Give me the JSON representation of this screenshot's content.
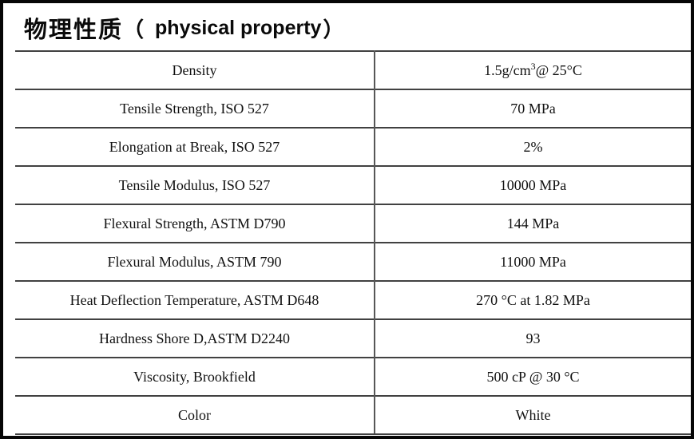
{
  "title": {
    "zh": "物理性质",
    "paren_open": "（",
    "en": "physical property",
    "paren_close": "）"
  },
  "table": {
    "rows": [
      {
        "property": "Density",
        "value_pre": "1.5g/cm",
        "value_sup": "3",
        "value_post": "@ 25°C"
      },
      {
        "property": "Tensile Strength, ISO 527",
        "value_pre": "70 MPa",
        "value_sup": "",
        "value_post": ""
      },
      {
        "property": "Elongation at Break, ISO 527",
        "value_pre": "2%",
        "value_sup": "",
        "value_post": ""
      },
      {
        "property": "Tensile Modulus, ISO 527",
        "value_pre": "10000 MPa",
        "value_sup": "",
        "value_post": ""
      },
      {
        "property": "Flexural Strength, ASTM D790",
        "value_pre": "144 MPa",
        "value_sup": "",
        "value_post": ""
      },
      {
        "property": "Flexural Modulus, ASTM 790",
        "value_pre": "11000 MPa",
        "value_sup": "",
        "value_post": ""
      },
      {
        "property": "Heat Deflection Temperature, ASTM D648",
        "value_pre": "270 °C at 1.82 MPa",
        "value_sup": "",
        "value_post": ""
      },
      {
        "property": "Hardness Shore D,ASTM D2240",
        "value_pre": "93",
        "value_sup": "",
        "value_post": ""
      },
      {
        "property": "Viscosity, Brookfield",
        "value_pre": "500 cP @ 30 °C",
        "value_sup": "",
        "value_post": ""
      },
      {
        "property": "Color",
        "value_pre": "White",
        "value_sup": "",
        "value_post": ""
      }
    ]
  }
}
